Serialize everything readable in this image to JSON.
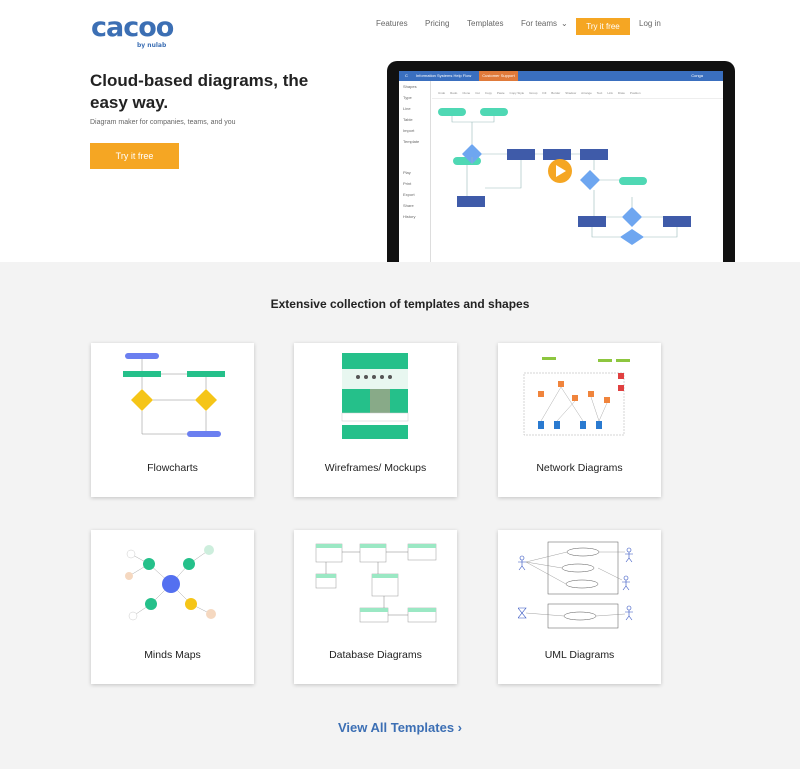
{
  "brand": {
    "logo": "cacoo",
    "by": "by nulab"
  },
  "nav": {
    "items": [
      "Features",
      "Pricing",
      "Templates",
      "For teams"
    ],
    "try": "Try it free",
    "login": "Log in"
  },
  "hero": {
    "title": "Cloud-based diagrams, the easy way.",
    "subtitle": "Diagram maker for companies, teams, and you",
    "cta": "Try it free"
  },
  "app": {
    "doc_title": "Information Systems Help Flow",
    "folder": "Customer Support",
    "user": "Conga",
    "side": [
      "Shapes",
      "Type",
      "Line",
      "Table",
      "Import",
      "Template",
      "Play",
      "Print",
      "Export",
      "Share",
      "History"
    ],
    "tools": [
      "Undo",
      "Redo",
      "Clone",
      "Cut",
      "Copy",
      "Paste",
      "Copy Style",
      "Group",
      "Fill",
      "Border",
      "Shadow",
      "Arrange",
      "Text",
      "Link",
      "Draw",
      "Position"
    ]
  },
  "section": {
    "title": "Extensive collection of templates and shapes",
    "cards": [
      "Flowcharts",
      "Wireframes/ Mockups",
      "Network Diagrams",
      "Minds Maps",
      "Database Diagrams",
      "UML Diagrams"
    ],
    "view_all": "View All Templates ›"
  },
  "colors": {
    "accent": "#f5a623",
    "brand": "#3c6fb4"
  }
}
